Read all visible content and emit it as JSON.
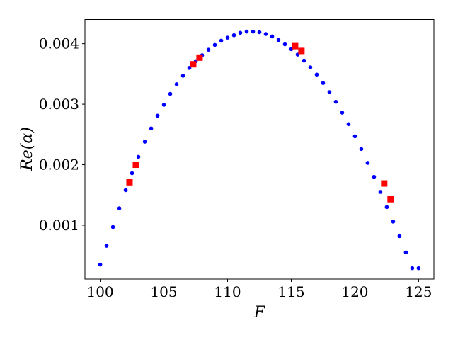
{
  "chart_data": {
    "type": "scatter",
    "xlabel": "F",
    "ylabel": "Re(α)",
    "xlim": [
      98.8,
      126.2
    ],
    "ylim": [
      0.00011,
      0.0044
    ],
    "xticks": [
      100,
      105,
      110,
      115,
      120,
      125
    ],
    "xtick_labels": [
      "100",
      "105",
      "110",
      "115",
      "120",
      "125"
    ],
    "yticks": [
      0.001,
      0.002,
      0.003,
      0.004
    ],
    "ytick_labels": [
      "0.001",
      "0.002",
      "0.003",
      "0.004"
    ],
    "grid": false,
    "series": [
      {
        "marker": "circle",
        "color": "#0000ff",
        "x": [
          100.0,
          100.5,
          101.0,
          101.5,
          102.0,
          102.5,
          103.0,
          103.5,
          104.0,
          104.5,
          105.0,
          105.5,
          106.0,
          106.5,
          107.0,
          107.5,
          108.0,
          108.5,
          109.0,
          109.5,
          110.0,
          110.5,
          111.0,
          111.5,
          112.0,
          112.5,
          113.0,
          113.5,
          114.0,
          114.5,
          115.0,
          115.5,
          116.0,
          116.5,
          117.0,
          117.5,
          118.0,
          118.5,
          119.0,
          119.5,
          120.0,
          120.5,
          121.0,
          121.5,
          122.0,
          122.5,
          123.0,
          123.5,
          124.0,
          124.5,
          125.0
        ],
        "y": [
          0.00035,
          0.00066,
          0.00097,
          0.00128,
          0.00158,
          0.00186,
          0.00213,
          0.00238,
          0.0026,
          0.00281,
          0.00299,
          0.00317,
          0.00333,
          0.00347,
          0.0036,
          0.00371,
          0.00381,
          0.0039,
          0.00398,
          0.00405,
          0.0041,
          0.00414,
          0.00418,
          0.0042,
          0.0042,
          0.00419,
          0.00416,
          0.00412,
          0.00406,
          0.00399,
          0.00391,
          0.00382,
          0.00372,
          0.00361,
          0.00349,
          0.00335,
          0.0032,
          0.00304,
          0.00286,
          0.00267,
          0.00247,
          0.00226,
          0.00203,
          0.0018,
          0.00155,
          0.0013,
          0.00106,
          0.00082,
          0.00055,
          0.00029,
          0.00029
        ]
      },
      {
        "marker": "square",
        "color": "#ff0000",
        "x": [
          102.3,
          102.8,
          107.3,
          107.8,
          115.3,
          115.8,
          122.3,
          122.8
        ],
        "y": [
          0.00171,
          0.002,
          0.00366,
          0.00377,
          0.00396,
          0.00388,
          0.00169,
          0.00143
        ]
      }
    ]
  }
}
